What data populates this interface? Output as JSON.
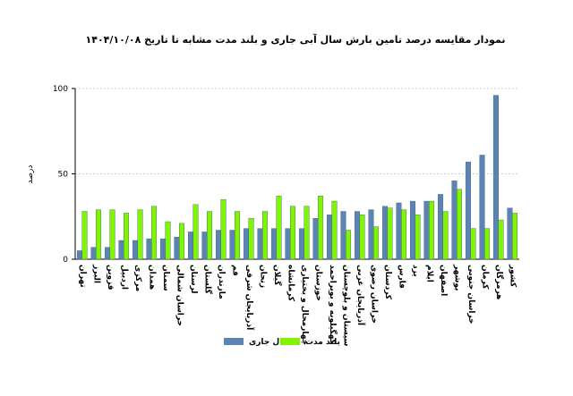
{
  "chart_data": {
    "type": "bar",
    "title": "نمودار  مقایسه درصد تامین بارش  سال آبی جاری و بلند مدت مشابه تا تاریخ  ۱۴۰۴/۱۰/۰۸",
    "y_label": "درصد",
    "categories": [
      "تهران",
      "البرز",
      "قزوین",
      "اردبیل",
      "مرکزی",
      "همدان",
      "سمنان",
      "خراسان شمالی",
      "لرستان",
      "گلستان",
      "مازندران",
      "قم",
      "آذربایجان شرقی",
      "زنجان",
      "گیلان",
      "کرمانشاه",
      "چهارمحال و بختیاری",
      "خوزستان",
      "کهگیلویه و بویراحمد",
      "سیستان و بلوچستان",
      "آذربایجان غربی",
      "خراسان رضوی",
      "کردستان",
      "فارس",
      "یزد",
      "ایلام",
      "اصفهان",
      "بوشهر",
      "خراسان جنوبی",
      "کرمان",
      "هرمزگان",
      "کشور"
    ],
    "series": [
      {
        "name": "سال جاری",
        "color": "#5b84b4",
        "values": [
          5,
          7,
          7,
          11,
          11,
          12,
          12,
          13,
          16,
          16,
          17,
          17,
          18,
          18,
          18,
          18,
          18,
          24,
          26,
          28,
          28,
          29,
          31,
          33,
          34,
          34,
          38,
          46,
          57,
          61,
          96,
          30
        ]
      },
      {
        "name": "بلند مدت",
        "color": "#7ff500",
        "values": [
          28,
          29,
          29,
          27,
          29,
          31,
          22,
          21,
          32,
          28,
          35,
          28,
          24,
          28,
          37,
          31,
          31,
          37,
          34,
          17,
          26,
          19,
          30,
          29,
          26,
          34,
          28,
          41,
          18,
          18,
          23,
          27
        ]
      }
    ],
    "ylim": [
      0,
      100
    ],
    "yticks": [
      0,
      50,
      100
    ],
    "grid": true
  }
}
